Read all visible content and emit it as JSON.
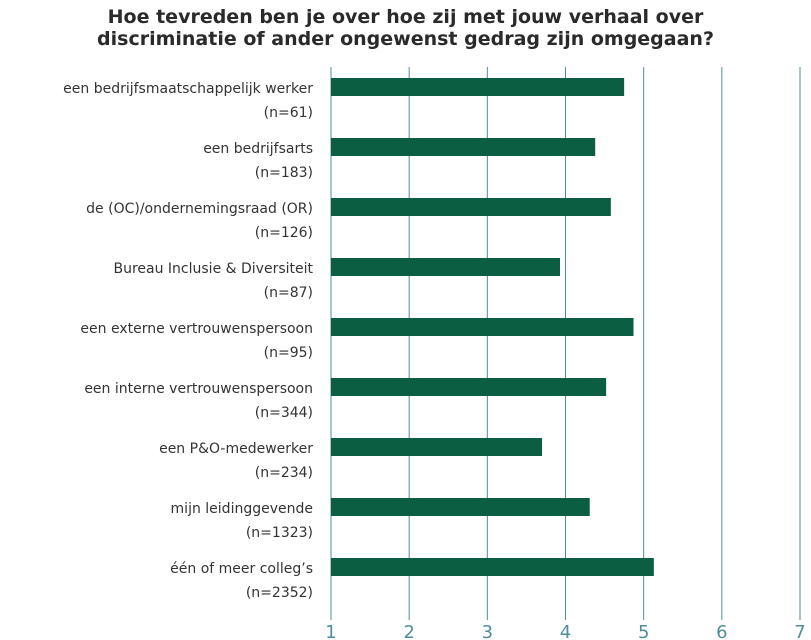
{
  "chart_data": {
    "type": "bar",
    "orientation": "horizontal",
    "title_lines": [
      "Hoe tevreden ben je over hoe zij met jouw verhaal over",
      "discriminatie of ander ongewenst gedrag zijn omgegaan?"
    ],
    "categories": [
      [
        "een bedrijfsmaatschappelijk werker",
        "(n=61)"
      ],
      [
        "een bedrijfsarts",
        "(n=183)"
      ],
      [
        "de (OC)/ondernemingsraad (OR)",
        "(n=126)"
      ],
      [
        "Bureau Inclusie & Diversiteit",
        "(n=87)"
      ],
      [
        "een externe vertrouwenspersoon",
        "(n=95)"
      ],
      [
        "een interne vertrouwenspersoon",
        "(n=344)"
      ],
      [
        "een P&O-medewerker",
        "(n=234)"
      ],
      [
        "mijn leidinggevende",
        "(n=1323)"
      ],
      [
        "één of meer colleg’s",
        "(n=2352)"
      ]
    ],
    "values": [
      4.75,
      4.38,
      4.58,
      3.93,
      4.87,
      4.52,
      3.7,
      4.31,
      5.13
    ],
    "xlim": [
      1,
      7
    ],
    "ticks": [
      "1",
      "2",
      "3",
      "4",
      "5",
      "6",
      "7"
    ],
    "grid": "vertical",
    "bar_color": "#0b5e41",
    "grid_color": "#4f8e9a",
    "tick_color": "#4f8e9a"
  }
}
